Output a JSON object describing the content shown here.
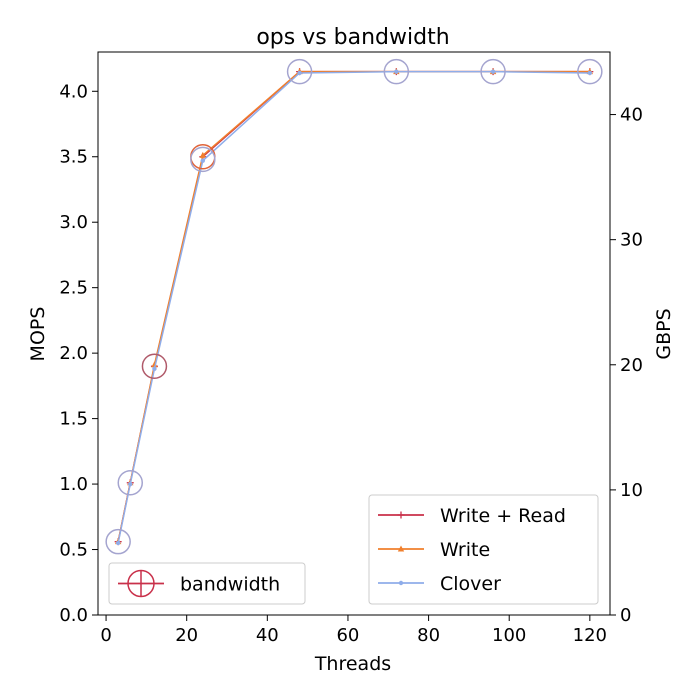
{
  "chart_data": {
    "type": "line",
    "title": "ops vs bandwidth",
    "xlabel": "Threads",
    "ylabel": "MOPS",
    "ylabel_right": "GBPS",
    "xlim": [
      -2,
      125
    ],
    "ylim": [
      0,
      4.3
    ],
    "ylim_right": [
      0,
      45
    ],
    "xticks": [
      0,
      20,
      40,
      60,
      80,
      100,
      120
    ],
    "yticks": [
      0.0,
      0.5,
      1.0,
      1.5,
      2.0,
      2.5,
      3.0,
      3.5,
      4.0
    ],
    "yticks_right": [
      0,
      10,
      20,
      30,
      40
    ],
    "x": [
      3,
      6,
      12,
      24,
      48,
      72,
      96,
      120
    ],
    "series": [
      {
        "name": "Write + Read",
        "color": "#c9304a",
        "marker": "plus",
        "values": [
          0.56,
          1.01,
          1.9,
          3.5,
          4.15,
          4.15,
          4.15,
          4.15
        ]
      },
      {
        "name": "Write",
        "color": "#f07f2c",
        "marker": "triangle",
        "values": [
          0.56,
          1.01,
          1.91,
          3.51,
          4.15,
          4.15,
          4.15,
          4.15
        ]
      },
      {
        "name": "Clover",
        "color": "#8fadea",
        "marker": "dot",
        "values": [
          0.55,
          1.0,
          1.88,
          3.47,
          4.14,
          4.15,
          4.15,
          4.14
        ]
      }
    ],
    "bandwidth": {
      "name": "bandwidth",
      "circles": [
        {
          "x": 3,
          "y": 0.56,
          "color": "#a4a4cf"
        },
        {
          "x": 6,
          "y": 1.01,
          "color": "#a4a4cf"
        },
        {
          "x": 12,
          "y": 1.9,
          "color": "#b05a6a"
        },
        {
          "x": 24,
          "y": 3.5,
          "color": "#e0643a"
        },
        {
          "x": 24,
          "y": 3.48,
          "color": "#a4a4cf"
        },
        {
          "x": 48,
          "y": 4.15,
          "color": "#a4a4cf"
        },
        {
          "x": 72,
          "y": 4.15,
          "color": "#a4a4cf"
        },
        {
          "x": 96,
          "y": 4.15,
          "color": "#a4a4cf"
        },
        {
          "x": 120,
          "y": 4.15,
          "color": "#a4a4cf"
        }
      ]
    },
    "legend_series_placement": "lower-right",
    "legend_bandwidth_placement": "lower-left",
    "grid": false
  }
}
